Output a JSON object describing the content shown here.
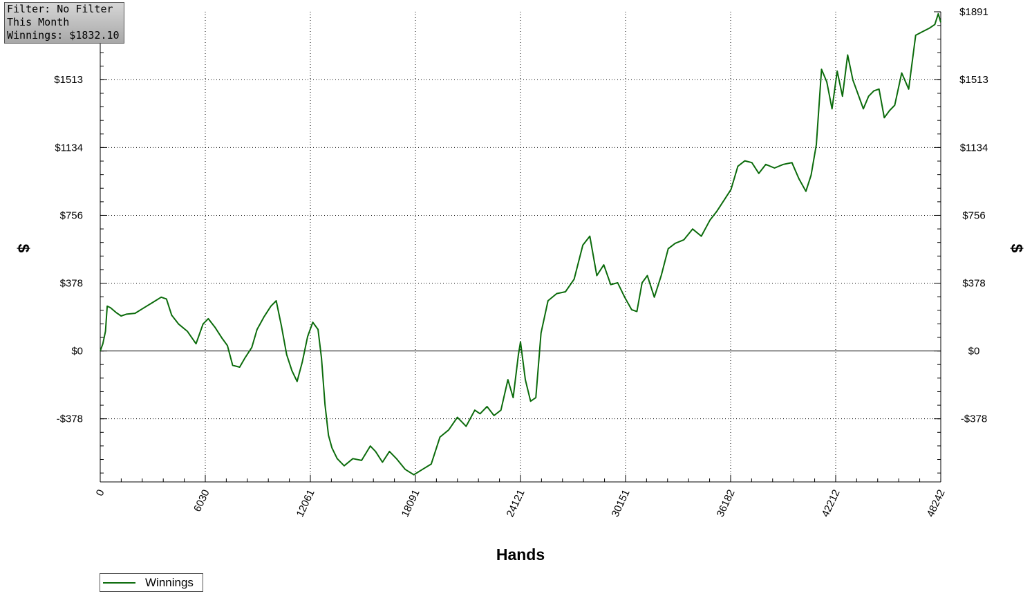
{
  "info_box": {
    "filter": "Filter: No Filter",
    "period": "This Month",
    "winnings": "Winnings: $1832.10"
  },
  "colors": {
    "series": "#0b6b0b",
    "grid": "#000000",
    "axis": "#000000"
  },
  "chart_data": {
    "type": "line",
    "xlabel": "Hands",
    "ylabel": "$",
    "xlim": [
      0,
      48242
    ],
    "ylim": [
      -730,
      1891
    ],
    "x_ticks": [
      0,
      6030,
      12061,
      18091,
      24121,
      30151,
      36182,
      42212,
      48242
    ],
    "x_tick_labels": [
      "0",
      "6030",
      "12061",
      "18091",
      "24121",
      "30151",
      "36182",
      "42212",
      "48242"
    ],
    "y_ticks": [
      -378,
      0,
      378,
      756,
      1134,
      1513,
      1891
    ],
    "y_tick_labels": [
      "-$378",
      "$0",
      "$378",
      "$756",
      "$1134",
      "$1513",
      "$1891"
    ],
    "grid": "dotted",
    "legend_position": "bottom-left",
    "series": [
      {
        "name": "Winnings",
        "x": [
          0,
          150,
          300,
          400,
          600,
          900,
          1200,
          1500,
          2000,
          2500,
          3000,
          3500,
          3800,
          4100,
          4500,
          5000,
          5500,
          5900,
          6200,
          6600,
          7000,
          7300,
          7600,
          8000,
          8300,
          8700,
          9000,
          9400,
          9800,
          10100,
          10400,
          10700,
          11000,
          11300,
          11600,
          11900,
          12200,
          12500,
          12700,
          12900,
          13100,
          13300,
          13600,
          14000,
          14500,
          15000,
          15500,
          15800,
          16200,
          16600,
          17000,
          17500,
          18000,
          18500,
          19000,
          19500,
          20000,
          20500,
          21000,
          21500,
          21800,
          22200,
          22600,
          23000,
          23400,
          23700,
          24000,
          24121,
          24400,
          24700,
          25000,
          25300,
          25700,
          26200,
          26700,
          27200,
          27700,
          28100,
          28500,
          28900,
          29300,
          29700,
          30100,
          30500,
          30800,
          31100,
          31400,
          31800,
          32200,
          32600,
          33000,
          33500,
          34000,
          34500,
          35000,
          35400,
          35800,
          36200,
          36600,
          37000,
          37400,
          37800,
          38200,
          38700,
          39200,
          39700,
          40100,
          40500,
          40800,
          41100,
          41400,
          41700,
          42000,
          42300,
          42600,
          42900,
          43200,
          43500,
          43800,
          44100,
          44400,
          44700,
          45000,
          45300,
          45600,
          46000,
          46400,
          46800,
          47200,
          47600,
          47900,
          48100,
          48242
        ],
        "y": [
          0,
          40,
          110,
          250,
          240,
          215,
          195,
          205,
          210,
          240,
          270,
          300,
          290,
          200,
          150,
          110,
          40,
          150,
          180,
          130,
          70,
          30,
          -80,
          -90,
          -40,
          20,
          120,
          190,
          250,
          280,
          140,
          -20,
          -110,
          -170,
          -60,
          80,
          160,
          120,
          -40,
          -300,
          -470,
          -540,
          -600,
          -640,
          -600,
          -610,
          -530,
          -560,
          -620,
          -560,
          -600,
          -660,
          -690,
          -660,
          -630,
          -480,
          -440,
          -370,
          -420,
          -330,
          -350,
          -310,
          -360,
          -330,
          -160,
          -260,
          -20,
          50,
          -160,
          -280,
          -260,
          100,
          280,
          320,
          330,
          400,
          590,
          640,
          420,
          480,
          370,
          380,
          300,
          230,
          220,
          380,
          420,
          300,
          420,
          570,
          600,
          620,
          680,
          640,
          730,
          780,
          840,
          900,
          1030,
          1060,
          1050,
          990,
          1040,
          1020,
          1040,
          1050,
          960,
          890,
          980,
          1150,
          1570,
          1500,
          1350,
          1560,
          1420,
          1650,
          1510,
          1430,
          1350,
          1420,
          1450,
          1460,
          1300,
          1340,
          1370,
          1550,
          1460,
          1760,
          1780,
          1800,
          1820,
          1880,
          1832
        ]
      }
    ]
  },
  "legend": {
    "label": "Winnings"
  }
}
